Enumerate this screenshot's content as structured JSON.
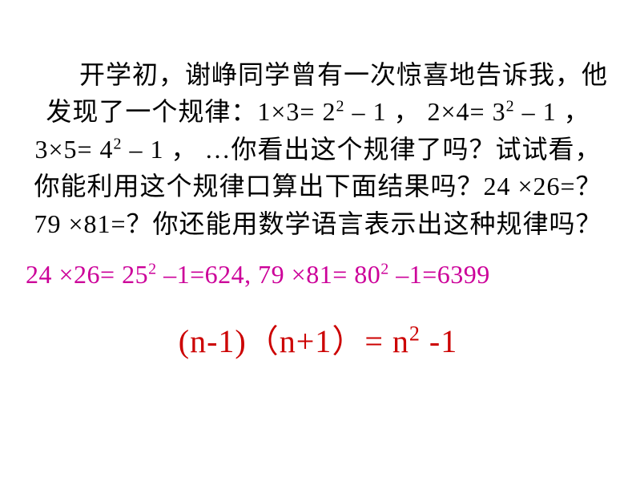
{
  "colors": {
    "background": "#ffffff",
    "body_text": "#000000",
    "answer1": "#cc0099",
    "answer2": "#cc0000"
  },
  "typography": {
    "body_font": "SimSun",
    "math_font": "Times New Roman",
    "body_fontsize_pt": 24,
    "answer1_fontsize_pt": 24,
    "answer2_fontsize_pt": 30
  },
  "content": {
    "para_seg1": "开学初，谢峥同学曾有一次惊喜地告诉我，他发现了一个规律：1×3=  2",
    "para_exp1": "2",
    "para_seg2": "  – 1 ， 2×4=  3",
    "para_exp2": "2",
    "para_seg3": "  – 1 ， 3×5=  4",
    "para_exp3": "2",
    "para_seg4": "  – 1 ， …你看出这个规律了吗？试试看，你能利用这个规律口算出下面结果吗？24 ×26=？79 ×81=？你还能用数学语言表示出这种规律吗？",
    "ans1_seg1": "24 ×26= 25",
    "ans1_exp1": "2",
    "ans1_seg2": " –1=624, 79 ×81= 80",
    "ans1_exp2": "2",
    "ans1_seg3": " –1=6399",
    "ans2_seg1": "(n-1)",
    "ans2_cn1": "（",
    "ans2_seg2": "n+1",
    "ans2_cn2": "）",
    "ans2_seg3": "= n",
    "ans2_exp1": "2",
    "ans2_seg4": " -1"
  }
}
